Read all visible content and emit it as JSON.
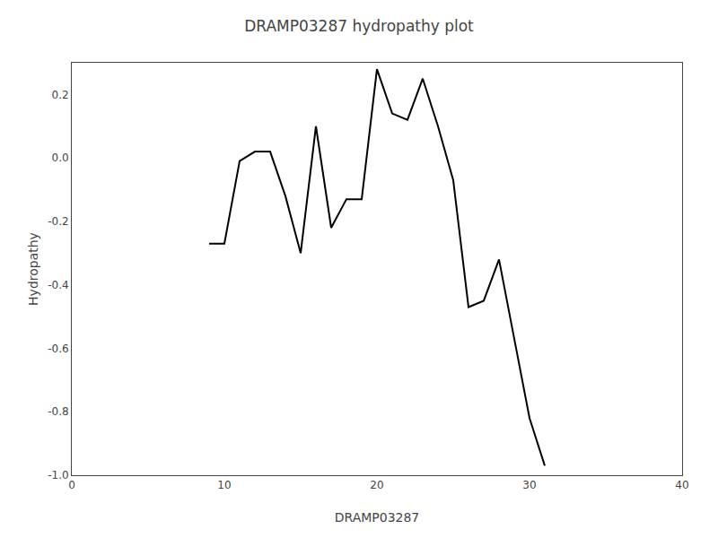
{
  "chart_data": {
    "type": "line",
    "title": "DRAMP03287 hydropathy plot",
    "xlabel": "DRAMP03287",
    "ylabel": "Hydropathy",
    "x": [
      9,
      10,
      11,
      12,
      13,
      14,
      15,
      16,
      17,
      18,
      19,
      20,
      21,
      22,
      23,
      24,
      25,
      26,
      27,
      28,
      29,
      30,
      31
    ],
    "values": [
      -0.27,
      -0.27,
      -0.01,
      0.02,
      0.02,
      -0.12,
      -0.3,
      0.1,
      -0.22,
      -0.13,
      -0.13,
      0.28,
      0.14,
      0.12,
      0.25,
      0.1,
      -0.07,
      -0.47,
      -0.45,
      -0.32,
      -0.57,
      -0.82,
      -0.97
    ],
    "color": "#000000",
    "xlim": [
      0,
      40
    ],
    "xticks": [
      0,
      10,
      20,
      30,
      40
    ],
    "ylim": [
      -1.0,
      0.3
    ],
    "yticks": [
      {
        "value": -1.0,
        "label": "-1.0"
      },
      -0.8,
      -0.6,
      -0.4,
      -0.2,
      {
        "value": 0.0,
        "label": "0.0"
      },
      0.2
    ],
    "grid": false
  }
}
